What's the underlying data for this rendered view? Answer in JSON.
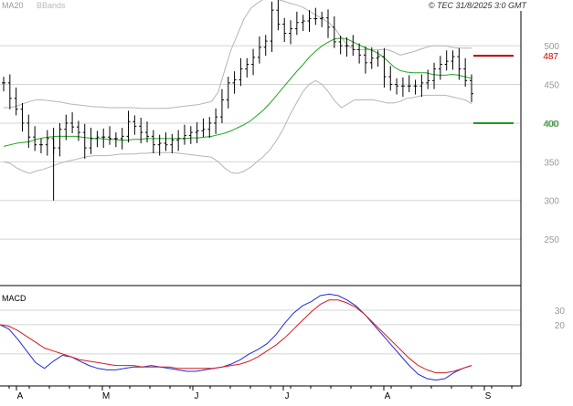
{
  "header": {
    "legend_items": [
      "MA20",
      "BBands"
    ],
    "copyright": "© TEC 31/8/2025 3:0 GMT"
  },
  "colors": {
    "grid": "#d4d4d4",
    "frame": "#000000",
    "price_bars": "#000000",
    "ma20": "#1fa51f",
    "bbands": "#b5b5b5",
    "resistance": "#c00000",
    "support": "#1f9a1f",
    "macd_line": "#1f2bd6",
    "signal_line": "#d41c1c",
    "axis_text": "#999999"
  },
  "chart_data": [
    {
      "type": "ohlc",
      "name": "price-panel",
      "y_ticks": [
        250,
        300,
        350,
        400,
        450,
        500
      ],
      "ylim": [
        190,
        545
      ],
      "x_month_labels": [
        "A",
        "M",
        "J",
        "J",
        "A",
        "S"
      ],
      "grid": true,
      "series": [
        {
          "name": "MA20",
          "kind": "line",
          "values": [
            370,
            372,
            374,
            375,
            376,
            379,
            381,
            382,
            383,
            383,
            383,
            383,
            382,
            381,
            380,
            380,
            379,
            379,
            378,
            378,
            379,
            379,
            380,
            380,
            380,
            380,
            380,
            380,
            380,
            381,
            381,
            382,
            383,
            385,
            387,
            390,
            394,
            398,
            403,
            410,
            417,
            426,
            436,
            446,
            456,
            466,
            475,
            485,
            493,
            500,
            505,
            509,
            510,
            508,
            504,
            500,
            496,
            493,
            488,
            481,
            473,
            468,
            466,
            465,
            465,
            465,
            463,
            462,
            462,
            463,
            462,
            460,
            458
          ]
        },
        {
          "name": "BBands",
          "kind": "band",
          "upper": [
            420,
            420,
            422,
            425,
            428,
            430,
            430,
            429,
            428,
            427,
            425,
            424,
            423,
            422,
            421,
            421,
            420,
            420,
            420,
            420,
            420,
            419,
            419,
            419,
            419,
            419,
            420,
            421,
            422,
            423,
            424,
            426,
            428,
            440,
            468,
            495,
            515,
            535,
            548,
            555,
            560,
            560,
            560,
            558,
            555,
            553,
            550,
            545,
            540,
            535,
            530,
            522,
            510,
            500,
            495,
            495,
            495,
            495,
            495,
            495,
            492,
            488,
            490,
            492,
            495,
            498,
            500,
            500,
            500,
            498,
            497,
            497,
            497
          ],
          "lower": [
            350,
            348,
            342,
            338,
            335,
            338,
            340,
            343,
            346,
            349,
            351,
            353,
            355,
            357,
            358,
            358,
            358,
            359,
            360,
            360,
            360,
            361,
            361,
            362,
            362,
            362,
            362,
            361,
            360,
            359,
            358,
            357,
            356,
            350,
            342,
            336,
            335,
            338,
            343,
            350,
            357,
            366,
            378,
            392,
            410,
            425,
            440,
            450,
            455,
            450,
            440,
            428,
            420,
            425,
            430,
            430,
            430,
            430,
            428,
            426,
            426,
            428,
            432,
            433,
            435,
            436,
            436,
            436,
            436,
            434,
            432,
            430,
            425
          ]
        },
        {
          "name": "price",
          "kind": "ohlc_approx",
          "closes": [
            452,
            432,
            418,
            400,
            382,
            372,
            372,
            380,
            368,
            392,
            400,
            395,
            388,
            368,
            380,
            382,
            382,
            380,
            380,
            383,
            402,
            396,
            388,
            383,
            372,
            374,
            372,
            378,
            380,
            384,
            388,
            390,
            392,
            400,
            408,
            430,
            452,
            456,
            470,
            476,
            485,
            498,
            506,
            546,
            528,
            516,
            522,
            530,
            532,
            535,
            535,
            536,
            524,
            505,
            500,
            500,
            495,
            488,
            478,
            484,
            486,
            460,
            450,
            448,
            448,
            448,
            448,
            452,
            455,
            470,
            476,
            480,
            486,
            470,
            455,
            438
          ]
        },
        {
          "name": "resistance",
          "kind": "level",
          "value": 487,
          "label": "487"
        },
        {
          "name": "support",
          "kind": "level",
          "value": 400,
          "label": "400"
        }
      ]
    },
    {
      "type": "line",
      "name": "macd-panel",
      "title": "MACD",
      "y_ticks": [
        20,
        30
      ],
      "ylim": [
        -22,
        45
      ],
      "grid": true,
      "series": [
        {
          "name": "MACD",
          "values": [
            20,
            17,
            10,
            2,
            -6,
            -10,
            -5,
            -1,
            -2,
            -5,
            -8,
            -10,
            -11,
            -11,
            -10,
            -9,
            -9,
            -8,
            -9,
            -10,
            -11,
            -12,
            -12,
            -11,
            -10,
            -9,
            -7,
            -4,
            0,
            3,
            7,
            13,
            21,
            28,
            33,
            36,
            40,
            41,
            40,
            37,
            33,
            27,
            20,
            13,
            6,
            -1,
            -8,
            -14,
            -17,
            -18,
            -17,
            -13,
            -10,
            -8
          ]
        },
        {
          "name": "Signal",
          "values": [
            20,
            19,
            16,
            12,
            8,
            4,
            2,
            0,
            -2,
            -4,
            -5,
            -6,
            -7,
            -8,
            -8,
            -8,
            -9,
            -9,
            -9,
            -9,
            -10,
            -10,
            -10,
            -10,
            -10,
            -9,
            -8,
            -7,
            -5,
            -2,
            2,
            6,
            11,
            17,
            23,
            29,
            34,
            37,
            37,
            35,
            32,
            27,
            21,
            15,
            9,
            3,
            -3,
            -8,
            -11,
            -13,
            -13,
            -12,
            -10,
            -8
          ]
        }
      ]
    }
  ]
}
